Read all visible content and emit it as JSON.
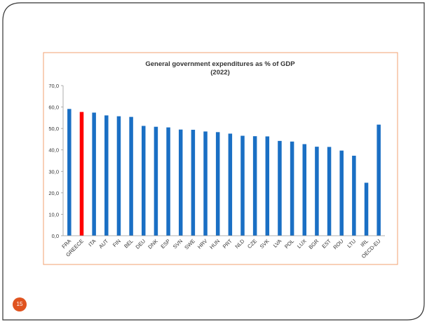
{
  "slide": {
    "page_number": "15",
    "colors": {
      "frame": "#333333",
      "badge": "#e0531f",
      "chart_border": "#f0a070"
    }
  },
  "chart_data": {
    "type": "bar",
    "title": "General government expenditures as % of GDP",
    "subtitle": "(2022)",
    "xlabel": "",
    "ylabel": "",
    "ylim": [
      0,
      70
    ],
    "yticks": [
      "0,0",
      "10,0",
      "20,0",
      "30,0",
      "40,0",
      "50,0",
      "60,0",
      "70,0"
    ],
    "grid": false,
    "legend": "none",
    "categories": [
      "FRA",
      "GREECE",
      "ITA",
      "AUT",
      "FIN",
      "BEL",
      "DEU",
      "DNK",
      "ESP",
      "SVN",
      "SWE",
      "HRV",
      "HUN",
      "PRT",
      "NLD",
      "CZE",
      "SVK",
      "LVA",
      "POL",
      "LUX",
      "BGR",
      "EST",
      "ROU",
      "LTU",
      "IRL",
      "OECD-EU"
    ],
    "values": [
      59.1,
      57.7,
      57.4,
      56.1,
      55.7,
      55.4,
      51.2,
      50.8,
      50.5,
      49.5,
      49.4,
      48.6,
      48.3,
      47.6,
      46.6,
      46.4,
      46.3,
      44.2,
      43.9,
      42.7,
      41.5,
      41.4,
      39.7,
      37.3,
      24.7,
      51.8
    ],
    "colors": {
      "default": "#1a6fc4",
      "highlight": "#ff0000"
    },
    "highlight": [
      "GREECE"
    ]
  }
}
